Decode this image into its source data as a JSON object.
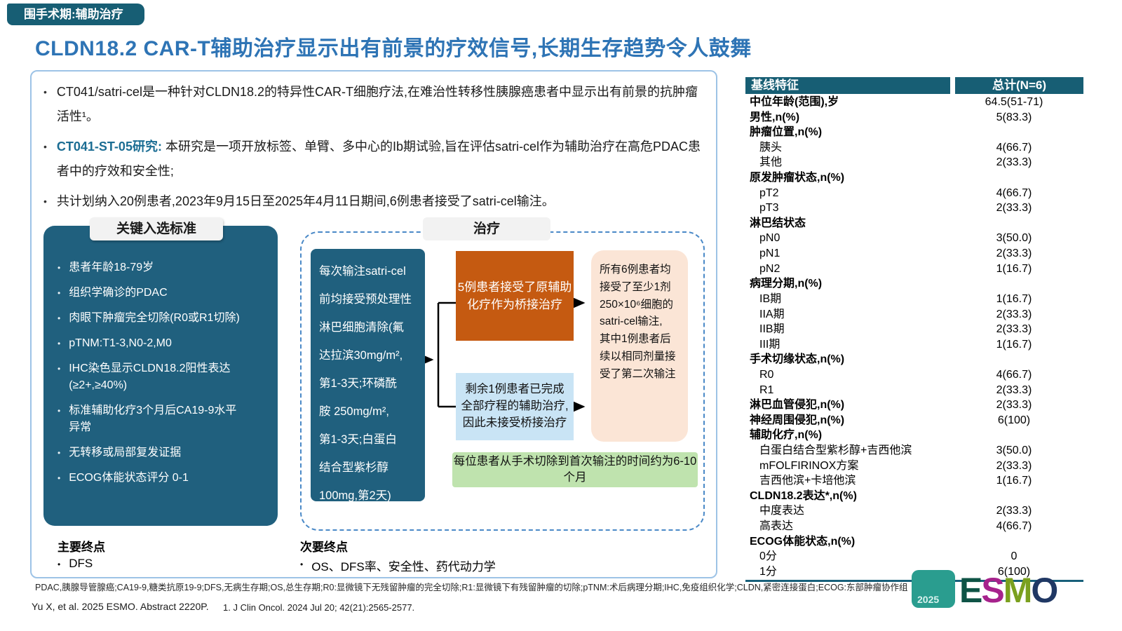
{
  "badge": "围手术期:辅助治疗",
  "title": "CLDN18.2 CAR-T辅助治疗显示出有前景的疗效信号,长期生存趋势令人鼓舞",
  "bullets": {
    "b1": "CT041/satri-cel是一种针对CLDN18.2的特异性CAR-T细胞疗法,在难治性转移性胰腺癌患者中显示出有前景的抗肿瘤活性¹。",
    "b2_label": "CT041-ST-05研究:",
    "b2_text": "本研究是一项开放标签、单臂、多中心的Ib期试验,旨在评估satri-cel作为辅助治疗在高危PDAC患者中的疗效和安全性;",
    "b3": "共计划纳入20例患者,2023年9月15日至2025年4月11日期间,6例患者接受了satri-cel输注。"
  },
  "criteria": {
    "header": "关键入选标准",
    "items": [
      "患者年龄18-79岁",
      "组织学确诊的PDAC",
      "肉眼下肿瘤完全切除(R0或R1切除)",
      "pTNM:T1-3,N0-2,M0",
      "IHC染色显示CLDN18.2阳性表达\n(≥2+,≥40%)",
      "标准辅助化疗3个月后CA19-9水平\n异常",
      "无转移或局部复发证据",
      "ECOG体能状态评分 0-1"
    ]
  },
  "flow": {
    "header": "治疗",
    "precondition": "每次输注satri-cel\n前均接受预处理性\n淋巴细胞清除(氟\n达拉滨30mg/m²,\n第1-3天;环磷酰\n胺 250mg/m²,\n第1-3天;白蛋白\n结合型紫杉醇\n100mg,第2天)",
    "bridge": "5例患者接受了原辅助\n化疗作为桥接治疗",
    "no_bridge": "剩余1例患者已完成\n全部疗程的辅助治疗,\n因此未接受桥接治疗",
    "infusion": "所有6例患者均\n接受了至少1剂\n250×10⁶细胞的\nsatri-cel输注,\n其中1例患者后\n续以相同剂量接\n受了第二次输注",
    "timing": "每位患者从手术切除到首次输注的时间约为6-10个月"
  },
  "endpoints": {
    "primary_title": "主要终点",
    "primary_item": "DFS",
    "secondary_title": "次要终点",
    "secondary_item": "OS、DFS率、安全性、药代动力学"
  },
  "table": {
    "header_label": "基线特征",
    "header_value": "总计(N=6)",
    "rows": [
      {
        "label": "中位年龄(范围),岁",
        "value": "64.5(51-71)",
        "style": "bold"
      },
      {
        "label": "男性,n(%)",
        "value": "5(83.3)",
        "style": "bold"
      },
      {
        "label": "肿瘤位置,n(%)",
        "value": "",
        "style": "bold"
      },
      {
        "label": "胰头",
        "value": "4(66.7)",
        "style": "indent"
      },
      {
        "label": "其他",
        "value": "2(33.3)",
        "style": "indent"
      },
      {
        "label": "原发肿瘤状态,n(%)",
        "value": "",
        "style": "bold"
      },
      {
        "label": "pT2",
        "value": "4(66.7)",
        "style": "indent"
      },
      {
        "label": "pT3",
        "value": "2(33.3)",
        "style": "indent"
      },
      {
        "label": "淋巴结状态",
        "value": "",
        "style": "bold"
      },
      {
        "label": "pN0",
        "value": "3(50.0)",
        "style": "indent"
      },
      {
        "label": "pN1",
        "value": "2(33.3)",
        "style": "indent"
      },
      {
        "label": "pN2",
        "value": "1(16.7)",
        "style": "indent"
      },
      {
        "label": "病理分期,n(%)",
        "value": "",
        "style": "bold"
      },
      {
        "label": "IB期",
        "value": "1(16.7)",
        "style": "indent"
      },
      {
        "label": "IIA期",
        "value": "2(33.3)",
        "style": "indent"
      },
      {
        "label": "IIB期",
        "value": "2(33.3)",
        "style": "indent"
      },
      {
        "label": "III期",
        "value": "1(16.7)",
        "style": "indent"
      },
      {
        "label": "手术切缘状态,n(%)",
        "value": "",
        "style": "bold"
      },
      {
        "label": "R0",
        "value": "4(66.7)",
        "style": "indent"
      },
      {
        "label": "R1",
        "value": "2(33.3)",
        "style": "indent"
      },
      {
        "label": "淋巴血管侵犯,n(%)",
        "value": "2(33.3)",
        "style": "bold"
      },
      {
        "label": "神经周围侵犯,n(%)",
        "value": "6(100)",
        "style": "bold"
      },
      {
        "label": "辅助化疗,n(%)",
        "value": "",
        "style": "bold"
      },
      {
        "label": "白蛋白结合型紫杉醇+吉西他滨",
        "value": "3(50.0)",
        "style": "indent"
      },
      {
        "label": "mFOLFIRINOX方案",
        "value": "2(33.3)",
        "style": "indent"
      },
      {
        "label": "吉西他滨+卡培他滨",
        "value": "1(16.7)",
        "style": "indent"
      },
      {
        "label": "CLDN18.2表达*,n(%)",
        "value": "",
        "style": "bold"
      },
      {
        "label": "中度表达",
        "value": "2(33.3)",
        "style": "indent"
      },
      {
        "label": "高表达",
        "value": "4(66.7)",
        "style": "indent"
      },
      {
        "label": "ECOG体能状态,n(%)",
        "value": "",
        "style": "bold"
      },
      {
        "label": "0分",
        "value": "0",
        "style": "indent"
      },
      {
        "label": "1分",
        "value": "6(100)",
        "style": "indent"
      }
    ]
  },
  "footnote": "PDAC,胰腺导管腺癌;CA19-9,糖类抗原19-9;DFS,无病生存期;OS,总生存期;R0:显微镜下无残留肿瘤的完全切除;R1:显微镜下有残留肿瘤的切除;pTNM:术后病理分期;IHC,免疫组织化学;CLDN,紧密连接蛋白;ECOG:东部肿瘤协作组",
  "references": {
    "left": "Yu X, et al. 2025 ESMO. Abstract 2220P.",
    "right": "1. J Clin Oncol. 2024 Jul 20; 42(21):2565-2577."
  },
  "logo": {
    "year": "2025",
    "letters": [
      "E",
      "S",
      "M",
      "O"
    ]
  },
  "colors": {
    "teal_dark": "#175E74",
    "teal_box": "#20607E",
    "title_blue": "#2E74B5",
    "accent_teal_text": "#1B6D93",
    "orange": "#C55A11",
    "light_blue": "#C9E4F5",
    "peach": "#FBE5D6",
    "green": "#BFE3AE",
    "dashed_blue": "#4A89C7",
    "panel_border": "#9DC3E6",
    "pill_gray": "#F2F2F2"
  }
}
